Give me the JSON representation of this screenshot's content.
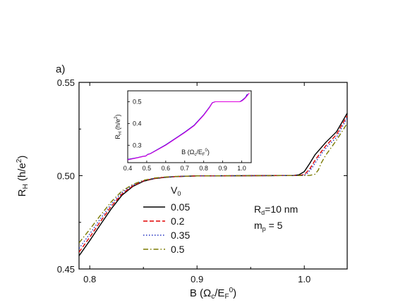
{
  "chart_data": {
    "type": "line",
    "panel_label": "a)",
    "xlabel": "B (Ωc/EF0)",
    "ylabel": "RH (h/e2)",
    "xlim": [
      0.79,
      1.04
    ],
    "ylim": [
      0.45,
      0.55
    ],
    "x_ticks": [
      "0.8",
      "0.9",
      "1.0"
    ],
    "y_ticks": [
      "0.45",
      "0.50",
      "0.55"
    ],
    "legend": {
      "title": "V0",
      "entries": [
        "0.05",
        "0.2",
        "0.35",
        "0.5"
      ],
      "placement": "lower-left"
    },
    "annotations": [
      "Rd=10 nm",
      "mp = 5"
    ],
    "series": [
      {
        "name": "0.05",
        "color": "#000000",
        "style": "solid",
        "x": [
          0.79,
          0.8,
          0.81,
          0.82,
          0.83,
          0.84,
          0.85,
          0.86,
          0.87,
          0.88,
          0.9,
          0.95,
          0.99,
          0.995,
          1.0,
          1.005,
          1.01,
          1.02,
          1.03,
          1.04
        ],
        "y": [
          0.457,
          0.4652,
          0.4738,
          0.4822,
          0.4895,
          0.4942,
          0.497,
          0.4984,
          0.4991,
          0.4995,
          0.4999,
          0.5,
          0.5001,
          0.5005,
          0.5022,
          0.5065,
          0.5112,
          0.5178,
          0.5235,
          0.5335
        ]
      },
      {
        "name": "0.2",
        "color": "#e00000",
        "style": "dashed",
        "x": [
          0.79,
          0.8,
          0.81,
          0.82,
          0.83,
          0.84,
          0.85,
          0.86,
          0.87,
          0.88,
          0.9,
          0.95,
          0.995,
          1.0,
          1.005,
          1.01,
          1.015,
          1.02,
          1.03,
          1.04
        ],
        "y": [
          0.459,
          0.467,
          0.4755,
          0.4835,
          0.4902,
          0.4945,
          0.4972,
          0.4985,
          0.4992,
          0.4995,
          0.4999,
          0.5,
          0.5001,
          0.5006,
          0.5035,
          0.5082,
          0.5122,
          0.516,
          0.522,
          0.5322
        ]
      },
      {
        "name": "0.35",
        "color": "#2030c0",
        "style": "dotted",
        "x": [
          0.79,
          0.8,
          0.81,
          0.82,
          0.83,
          0.84,
          0.85,
          0.86,
          0.87,
          0.88,
          0.9,
          0.95,
          0.998,
          1.002,
          1.007,
          1.012,
          1.017,
          1.022,
          1.03,
          1.04
        ],
        "y": [
          0.461,
          0.4688,
          0.477,
          0.4847,
          0.491,
          0.4949,
          0.4973,
          0.4986,
          0.4992,
          0.4996,
          0.4999,
          0.5,
          0.5001,
          0.5007,
          0.504,
          0.5085,
          0.5125,
          0.516,
          0.5205,
          0.531
        ]
      },
      {
        "name": "0.5",
        "color": "#7a7a00",
        "style": "dashdot",
        "x": [
          0.79,
          0.8,
          0.81,
          0.82,
          0.83,
          0.84,
          0.85,
          0.86,
          0.87,
          0.88,
          0.9,
          0.95,
          1.005,
          1.01,
          1.013,
          1.016,
          1.02,
          1.025,
          1.03,
          1.04
        ],
        "y": [
          0.464,
          0.4712,
          0.4788,
          0.486,
          0.4918,
          0.4953,
          0.4975,
          0.4987,
          0.4993,
          0.4996,
          0.4999,
          0.5,
          0.5001,
          0.5008,
          0.503,
          0.507,
          0.511,
          0.515,
          0.519,
          0.528
        ]
      }
    ],
    "inset": {
      "xlabel": "B (Ωc/EF0)",
      "ylabel": "RH (h/e2)",
      "xlim": [
        0.4,
        1.05
      ],
      "ylim": [
        0.22,
        0.55
      ],
      "x_ticks": [
        "0.4",
        "0.5",
        "0.6",
        "0.7",
        "0.8",
        "0.9",
        "1.0"
      ],
      "y_ticks": [
        "0.3",
        "0.4",
        "0.5"
      ],
      "series": [
        {
          "color": "#0000cc",
          "x": [
            0.4,
            0.45,
            0.48,
            0.495,
            0.505,
            0.52,
            0.6,
            0.7,
            0.75,
            0.8,
            0.83,
            0.845,
            0.86,
            0.9,
            0.95,
            0.99,
            1.0,
            1.01,
            1.02,
            1.03
          ],
          "y": [
            0.235,
            0.243,
            0.249,
            0.251,
            0.258,
            0.262,
            0.302,
            0.36,
            0.392,
            0.44,
            0.475,
            0.495,
            0.5,
            0.5,
            0.5,
            0.5,
            0.505,
            0.512,
            0.52,
            0.535
          ]
        },
        {
          "color": "#e000e0",
          "x": [
            0.4,
            0.45,
            0.48,
            0.495,
            0.505,
            0.52,
            0.6,
            0.7,
            0.75,
            0.8,
            0.83,
            0.845,
            0.86,
            0.9,
            0.95,
            0.99,
            1.0,
            1.01,
            1.02,
            1.04
          ],
          "y": [
            0.233,
            0.242,
            0.248,
            0.25,
            0.257,
            0.261,
            0.3,
            0.358,
            0.39,
            0.438,
            0.473,
            0.494,
            0.5,
            0.5,
            0.5,
            0.5,
            0.503,
            0.51,
            0.518,
            0.54
          ]
        }
      ]
    }
  }
}
